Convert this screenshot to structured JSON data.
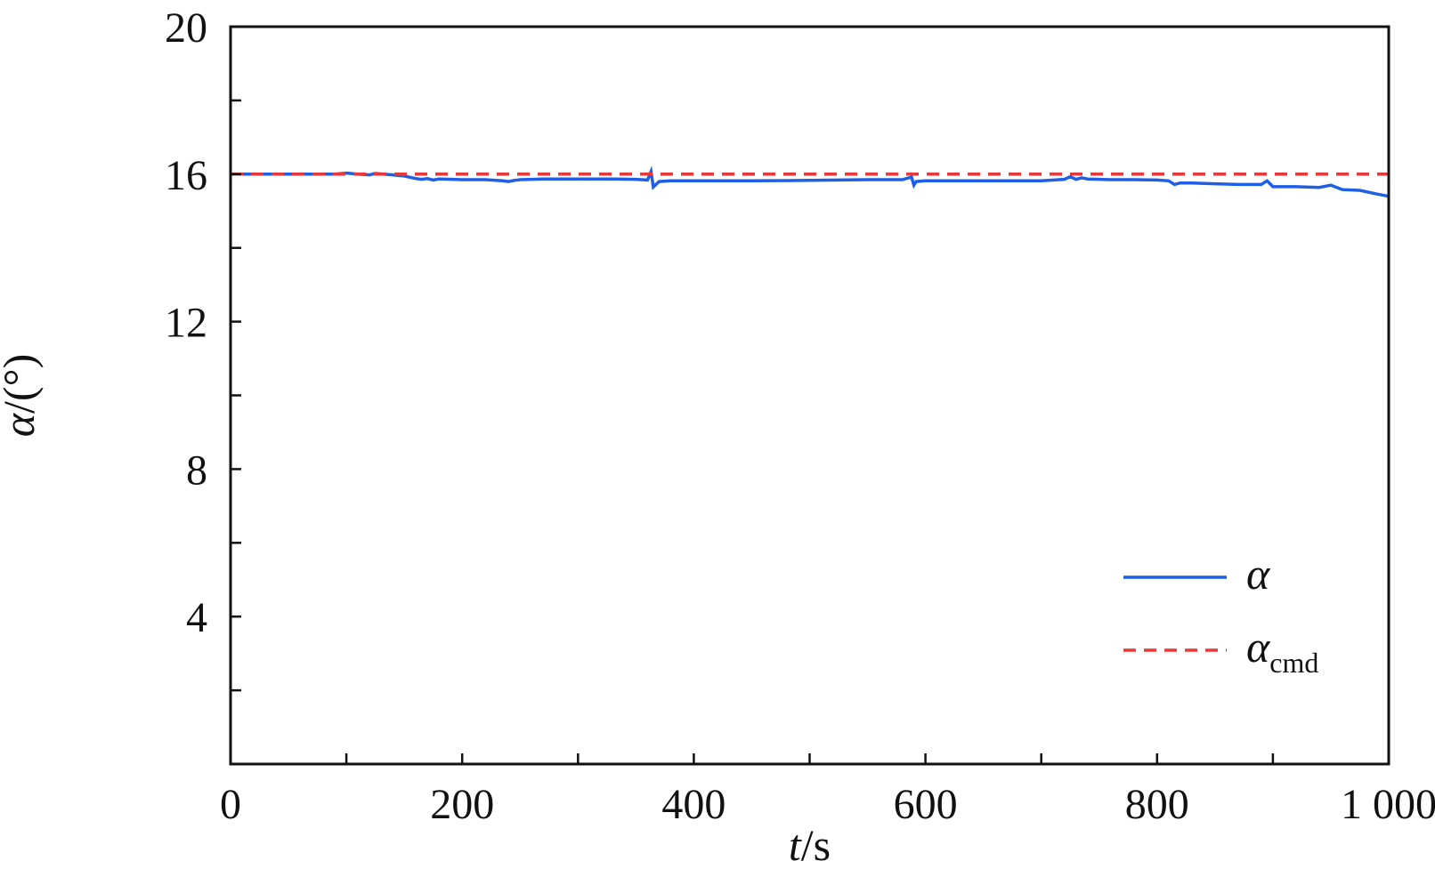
{
  "chart_data": {
    "type": "line",
    "x_ticks": [
      0,
      200,
      400,
      600,
      800,
      1000
    ],
    "x_tick_labels": [
      "0",
      "200",
      "400",
      "600",
      "800",
      "1 000"
    ],
    "y_ticks": [
      4,
      8,
      12,
      16,
      20
    ],
    "y_tick_labels": [
      "4",
      "8",
      "12",
      "16",
      "20"
    ],
    "xlim": [
      0,
      1000
    ],
    "ylim": [
      0,
      20
    ],
    "xlabel_italic": "t",
    "xlabel_unit": "/s",
    "ylabel_italic": "α",
    "ylabel_unit": "/(°)",
    "grid": false,
    "legend_position": "bottom-right",
    "series": [
      {
        "name": "α",
        "color": "#1f5fe6",
        "dashed": false,
        "x": [
          0,
          50,
          90,
          100,
          110,
          120,
          125,
          140,
          150,
          160,
          165,
          170,
          175,
          180,
          200,
          220,
          235,
          240,
          245,
          250,
          270,
          300,
          330,
          350,
          360,
          363,
          365,
          370,
          380,
          400,
          450,
          500,
          550,
          580,
          588,
          590,
          592,
          600,
          650,
          700,
          720,
          725,
          730,
          735,
          740,
          760,
          780,
          800,
          810,
          815,
          820,
          830,
          850,
          870,
          890,
          895,
          900,
          920,
          940,
          950,
          960,
          975,
          990,
          1000
        ],
        "y": [
          16.0,
          16.0,
          16.0,
          16.03,
          16.0,
          15.98,
          16.02,
          15.98,
          15.95,
          15.88,
          15.86,
          15.88,
          15.84,
          15.87,
          15.85,
          15.85,
          15.82,
          15.8,
          15.83,
          15.85,
          15.87,
          15.87,
          15.87,
          15.86,
          15.84,
          16.07,
          15.65,
          15.8,
          15.82,
          15.82,
          15.82,
          15.83,
          15.85,
          15.85,
          15.92,
          15.7,
          15.8,
          15.82,
          15.82,
          15.82,
          15.86,
          15.93,
          15.86,
          15.9,
          15.87,
          15.85,
          15.85,
          15.84,
          15.82,
          15.72,
          15.76,
          15.76,
          15.74,
          15.72,
          15.72,
          15.82,
          15.66,
          15.66,
          15.64,
          15.7,
          15.58,
          15.56,
          15.46,
          15.4
        ]
      },
      {
        "name": "α",
        "subscript": "cmd",
        "color": "#e8383a",
        "dashed": true,
        "x": [
          0,
          1000
        ],
        "y": [
          16.0,
          16.0
        ]
      }
    ]
  }
}
